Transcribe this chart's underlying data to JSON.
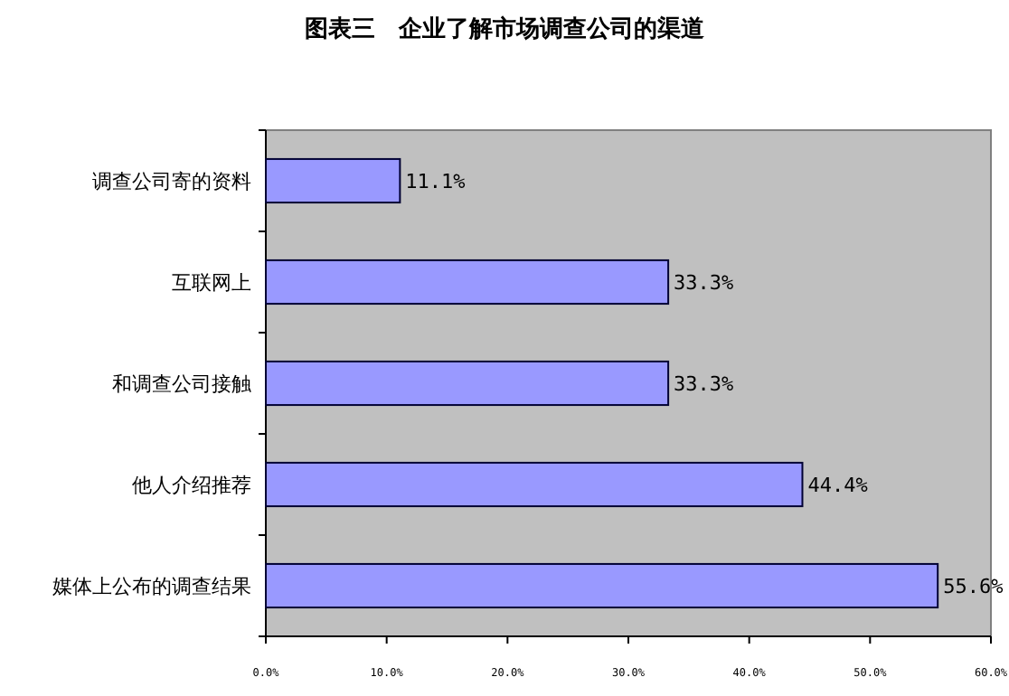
{
  "chart_data": {
    "type": "bar",
    "orientation": "horizontal",
    "title": "图表三　企业了解市场调查公司的渠道",
    "categories": [
      "调查公司寄的资料",
      "互联网上",
      "和调查公司接触",
      "他人介绍推荐",
      "媒体上公布的调查结果"
    ],
    "values": [
      11.1,
      33.3,
      33.3,
      44.4,
      55.6
    ],
    "color": "#9999ff",
    "value_labels": [
      "11.1%",
      "33.3%",
      "33.3%",
      "44.4%",
      "55.6%"
    ],
    "xlim": [
      0,
      60
    ],
    "xticks": [
      {
        "value": 0,
        "label": "0.0%"
      },
      {
        "value": 10,
        "label": "10.0%"
      },
      {
        "value": 20,
        "label": "20.0%"
      },
      {
        "value": 30,
        "label": "30.0%"
      },
      {
        "value": 40,
        "label": "40.0%"
      },
      {
        "value": 50,
        "label": "50.0%"
      },
      {
        "value": 60,
        "label": "60.0%"
      }
    ]
  }
}
